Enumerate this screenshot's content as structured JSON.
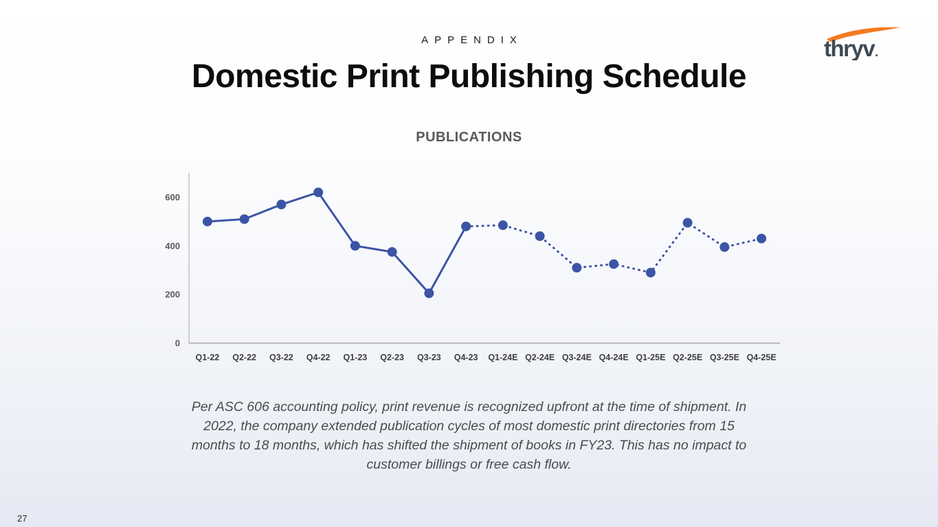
{
  "slide": {
    "eyebrow": "APPENDIX",
    "title": "Domestic Print Publishing Schedule",
    "footnote": "Per ASC 606 accounting policy, print revenue is recognized upfront at the time of shipment. In 2022, the company extended publication cycles of most domestic print directories from 15 months to 18 months, which has shifted the shipment of books in FY23. This has no impact to customer billings or free cash flow.",
    "page_number": "27",
    "logo": {
      "text": "thryv",
      "mark": ".",
      "swoosh_color": "#F47B20",
      "text_color": "#3E4A54"
    }
  },
  "chart_data": {
    "type": "line",
    "title": "PUBLICATIONS",
    "categories": [
      "Q1-22",
      "Q2-22",
      "Q3-22",
      "Q4-22",
      "Q1-23",
      "Q2-23",
      "Q3-23",
      "Q4-23",
      "Q1-24E",
      "Q2-24E",
      "Q3-24E",
      "Q4-24E",
      "Q1-25E",
      "Q2-25E",
      "Q3-25E",
      "Q4-25E"
    ],
    "series": [
      {
        "name": "Publications",
        "values": [
          500,
          510,
          570,
          620,
          400,
          375,
          205,
          480,
          485,
          440,
          310,
          325,
          290,
          495,
          395,
          430
        ]
      }
    ],
    "solid_through_index": 7,
    "segment_note": "solid line = actuals (Q1-22 to Q4-23), dotted line = estimates (Q1-24E to Q4-25E)",
    "ylim": [
      0,
      700
    ],
    "yticks": [
      0,
      200,
      400,
      600
    ],
    "xlabel": "",
    "ylabel": "",
    "grid": false,
    "legend": "none",
    "line_color": "#3B54A5",
    "marker_color": "#3B54A5",
    "axis_color": "#a6a6a6"
  }
}
